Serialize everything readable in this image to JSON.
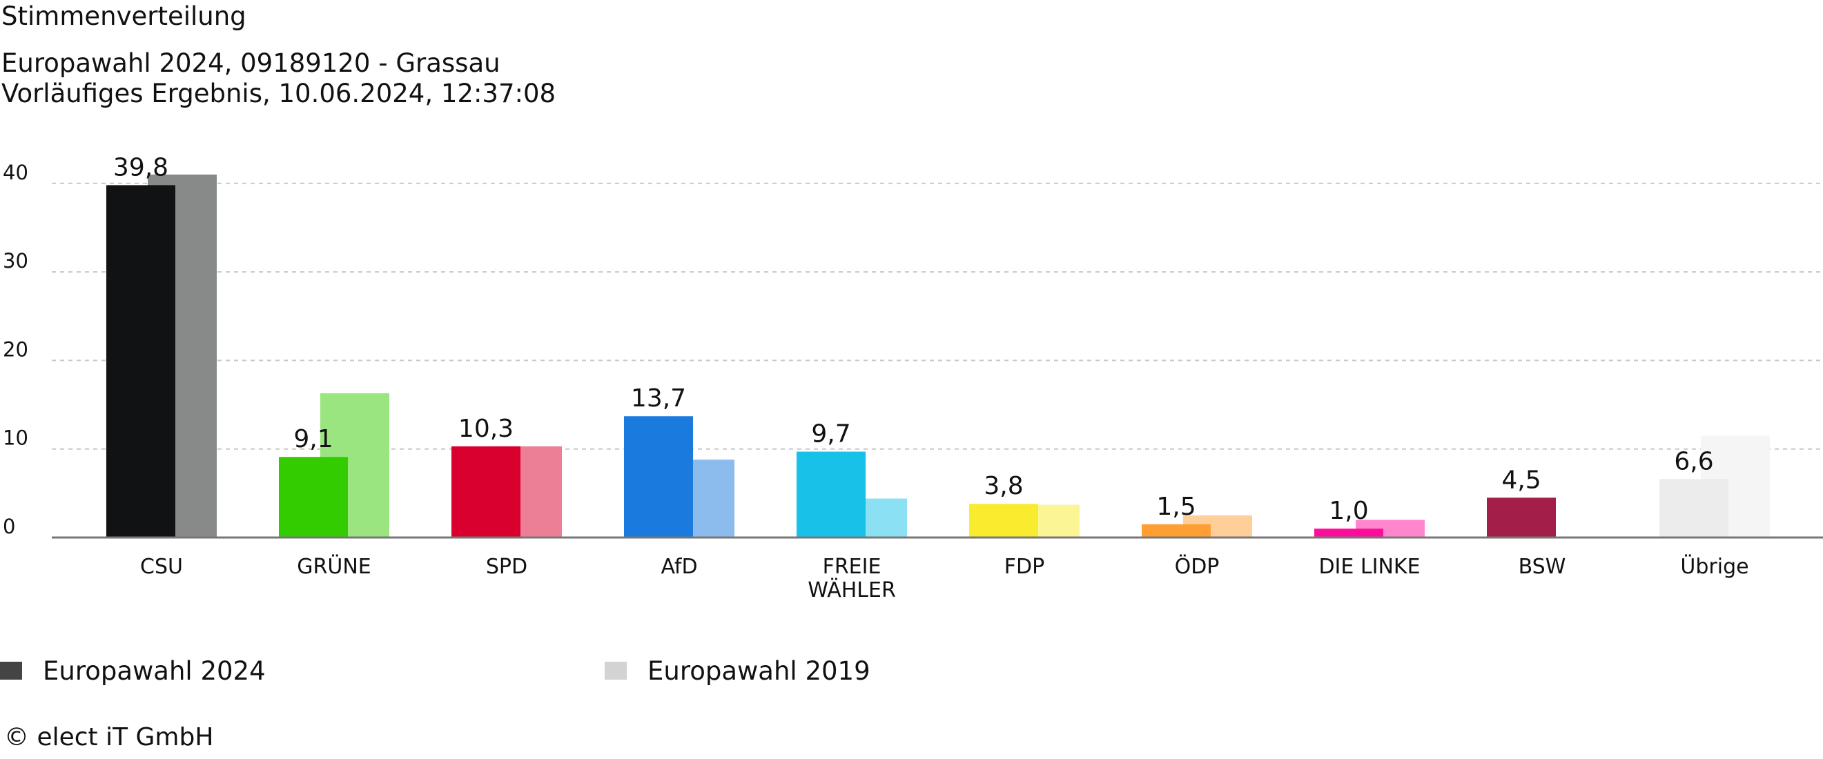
{
  "header": {
    "title": "Stimmenverteilung",
    "subtitle1": "Europawahl 2024, 09189120 - Grassau",
    "subtitle2": "Vorläufiges Ergebnis, 10.06.2024, 12:37:08"
  },
  "chart_data": {
    "type": "bar",
    "title": "Stimmenverteilung",
    "xlabel": "",
    "ylabel": "",
    "ylim": [
      0,
      40
    ],
    "yticks": [
      "0",
      "10",
      "20",
      "30",
      "40"
    ],
    "grid": true,
    "legend_position": "bottom",
    "categories": [
      {
        "label": "CSU",
        "lines": [
          "CSU"
        ],
        "color": "#111214",
        "color_prev": "#888a89"
      },
      {
        "label": "GRÜNE",
        "lines": [
          "GRÜNE"
        ],
        "color": "#33cc00",
        "color_prev": "#9be580"
      },
      {
        "label": "SPD",
        "lines": [
          "SPD"
        ],
        "color": "#d9002e",
        "color_prev": "#ec7f96"
      },
      {
        "label": "AfD",
        "lines": [
          "AfD"
        ],
        "color": "#1a7ade",
        "color_prev": "#8cbcee"
      },
      {
        "label": "FREIE WÄHLER",
        "lines": [
          "FREIE",
          "WÄHLER"
        ],
        "color": "#17c1e8",
        "color_prev": "#8be0f3"
      },
      {
        "label": "FDP",
        "lines": [
          "FDP"
        ],
        "color": "#f9ec2e",
        "color_prev": "#fcf596"
      },
      {
        "label": "ÖDP",
        "lines": [
          "ÖDP"
        ],
        "color": "#ff9f33",
        "color_prev": "#ffcf99"
      },
      {
        "label": "DIE LINKE",
        "lines": [
          "DIE LINKE"
        ],
        "color": "#ff0c9c",
        "color_prev": "#ff86cd"
      },
      {
        "label": "BSW",
        "lines": [
          "BSW"
        ],
        "color": "#a31f4a",
        "color_prev": "#d18fa4"
      },
      {
        "label": "Übrige",
        "lines": [
          "Übrige"
        ],
        "color": "#ececec",
        "color_prev": "#f5f5f5"
      }
    ],
    "series": [
      {
        "name": "Europawahl 2024",
        "values": [
          39.8,
          9.1,
          10.3,
          13.7,
          9.7,
          3.8,
          1.5,
          1.0,
          4.5,
          6.6
        ],
        "labels": [
          "39,8",
          "9,1",
          "10,3",
          "13,7",
          "9,7",
          "3,8",
          "1,5",
          "1,0",
          "4,5",
          "6,6"
        ],
        "legend_color": "#444444"
      },
      {
        "name": "Europawahl 2019",
        "values": [
          41.0,
          16.3,
          10.3,
          8.8,
          4.4,
          3.7,
          2.5,
          2.0,
          0,
          11.5
        ],
        "legend_color": "#d3d3d3"
      }
    ]
  },
  "footer": {
    "copyright": "© elect iT GmbH"
  }
}
